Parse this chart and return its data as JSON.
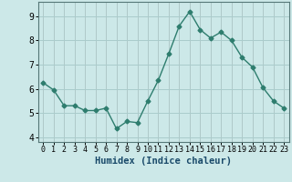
{
  "x": [
    0,
    1,
    2,
    3,
    4,
    5,
    6,
    7,
    8,
    9,
    10,
    11,
    12,
    13,
    14,
    15,
    16,
    17,
    18,
    19,
    20,
    21,
    22,
    23
  ],
  "y": [
    6.25,
    5.95,
    5.3,
    5.3,
    5.1,
    5.1,
    5.2,
    4.35,
    4.65,
    4.6,
    5.5,
    6.35,
    7.45,
    8.6,
    9.2,
    8.45,
    8.1,
    8.35,
    8.0,
    7.3,
    6.9,
    6.05,
    5.5,
    5.2
  ],
  "line_color": "#2e7d6e",
  "marker": "D",
  "marker_size": 2.5,
  "bg_color": "#cce8e8",
  "grid_color": "#aacccc",
  "xlabel": "Humidex (Indice chaleur)",
  "xlabel_fontsize": 7.5,
  "tick_fontsize": 7,
  "ylim": [
    3.8,
    9.6
  ],
  "xlim": [
    -0.5,
    23.5
  ],
  "yticks": [
    4,
    5,
    6,
    7,
    8,
    9
  ],
  "xticks": [
    0,
    1,
    2,
    3,
    4,
    5,
    6,
    7,
    8,
    9,
    10,
    11,
    12,
    13,
    14,
    15,
    16,
    17,
    18,
    19,
    20,
    21,
    22,
    23
  ]
}
